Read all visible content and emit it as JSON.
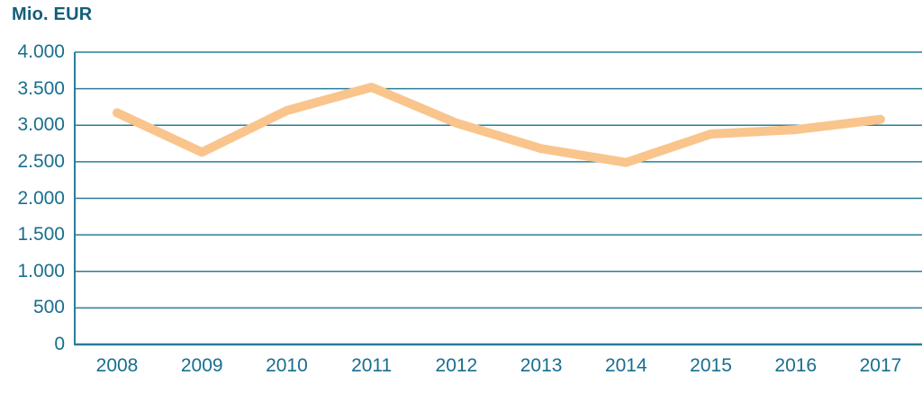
{
  "title": "Mio. EUR",
  "chart_data": {
    "type": "line",
    "title": "Mio. EUR",
    "unit_label": "Mio. EUR",
    "x": [
      2008,
      2009,
      2010,
      2011,
      2012,
      2013,
      2014,
      2015,
      2016,
      2017
    ],
    "x_tick_labels": [
      "2008",
      "2009",
      "2010",
      "2011",
      "2012",
      "2013",
      "2014",
      "2015",
      "2016",
      "2017"
    ],
    "series": [
      {
        "name": "Mio. EUR",
        "values": [
          3170,
          2630,
          3200,
          3520,
          3030,
          2680,
          2490,
          2880,
          2940,
          3080
        ]
      }
    ],
    "ylim": [
      0,
      4000
    ],
    "y_ticks": [
      {
        "value": 4000,
        "label": "4.000"
      },
      {
        "value": 3500,
        "label": "3.500"
      },
      {
        "value": 3000,
        "label": "3.000"
      },
      {
        "value": 2500,
        "label": "2.500"
      },
      {
        "value": 2000,
        "label": "2.000"
      },
      {
        "value": 1500,
        "label": "1.500"
      },
      {
        "value": 1000,
        "label": "1.000"
      },
      {
        "value": 500,
        "label": "500"
      },
      {
        "value": 0,
        "label": "0"
      }
    ],
    "grid": "horizontal",
    "legend": "none",
    "colors": {
      "line": "#F9C58C",
      "grid": "#2A7D99",
      "tick_text": "#186E8E",
      "title_text": "#145E7A",
      "background": "#FFFFFF"
    }
  }
}
